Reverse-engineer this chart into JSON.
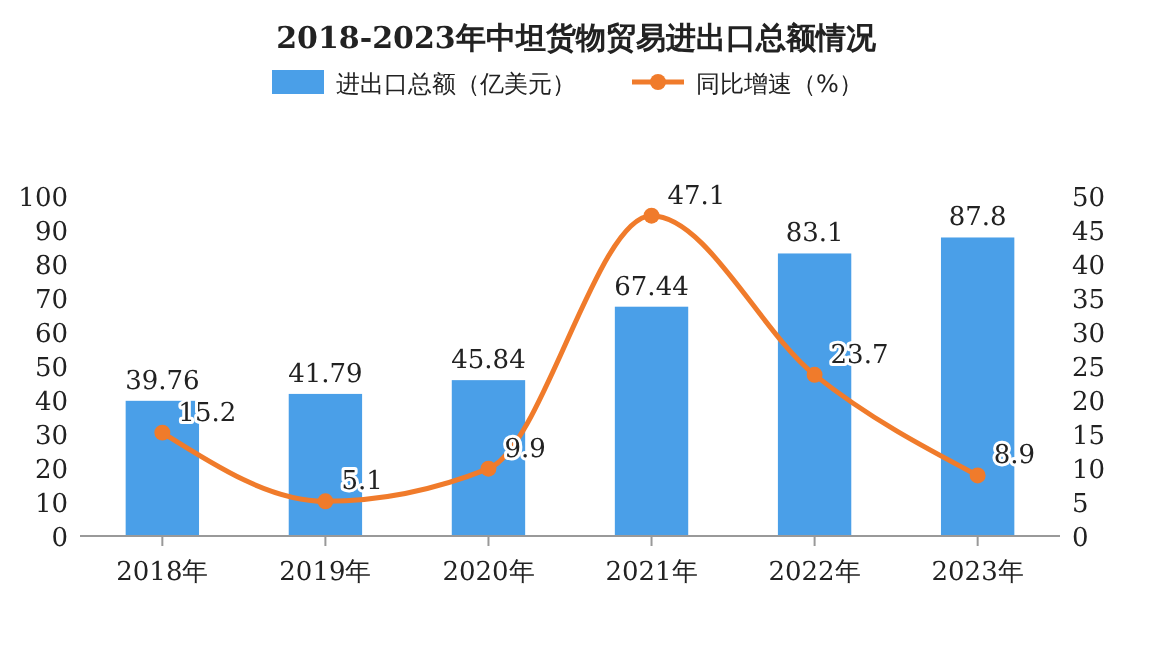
{
  "chart_data": {
    "type": "bar",
    "title": "2018-2023年中坦货物贸易进出口总额情况",
    "categories": [
      "2018年",
      "2019年",
      "2020年",
      "2021年",
      "2022年",
      "2023年"
    ],
    "series": [
      {
        "name": "进出口总额（亿美元）",
        "color": "#4a9fe8",
        "values": [
          39.76,
          41.79,
          45.84,
          67.44,
          83.1,
          87.8
        ]
      },
      {
        "name": "同比增速（%）",
        "type": "line",
        "axis": "y2",
        "color": "#f07b2b",
        "values": [
          15.2,
          5.1,
          9.9,
          47.1,
          23.7,
          8.9
        ]
      }
    ],
    "ylim": [
      0,
      100
    ],
    "yticks": [
      0,
      10,
      20,
      30,
      40,
      50,
      60,
      70,
      80,
      90,
      100
    ],
    "y2lim": [
      0,
      50
    ],
    "y2ticks": [
      0,
      5,
      10,
      15,
      20,
      25,
      30,
      35,
      40,
      45,
      50
    ],
    "data_labels": true,
    "legend": "top",
    "marker": "circle",
    "grid": false
  }
}
